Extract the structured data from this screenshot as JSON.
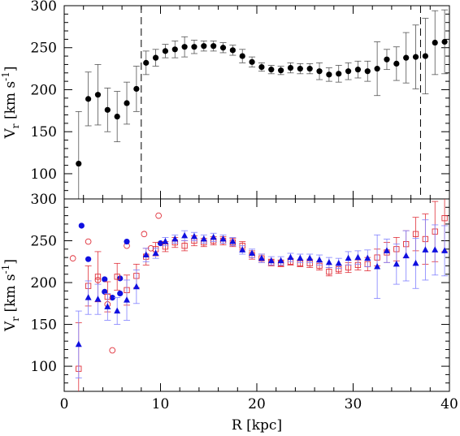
{
  "chart_data": {
    "type": "scatter",
    "xlabel": "R [kpc]",
    "x_ticks": [
      0,
      10,
      20,
      30,
      40
    ],
    "xlim": [
      0,
      40
    ],
    "panels": [
      {
        "ylabel": "V",
        "ylabel_sub": "r",
        "ylabel_units": "[km s",
        "ylabel_exp": "-1",
        "ylabel_close": "]",
        "ylim": [
          70,
          300
        ],
        "y_ticks": [
          100,
          150,
          200,
          250,
          300
        ],
        "vlines": [
          8.0,
          37.0
        ],
        "series": [
          {
            "marker": "filled-circle",
            "color": "#000000",
            "errcolor": "#555555",
            "points": [
              {
                "x": 1.5,
                "y": 112,
                "err": 62
              },
              {
                "x": 2.5,
                "y": 189,
                "err": 32
              },
              {
                "x": 3.5,
                "y": 194,
                "err": 36
              },
              {
                "x": 4.5,
                "y": 176,
                "err": 26
              },
              {
                "x": 5.5,
                "y": 168,
                "err": 30
              },
              {
                "x": 6.5,
                "y": 184,
                "err": 25
              },
              {
                "x": 7.5,
                "y": 201,
                "err": 27
              },
              {
                "x": 8.5,
                "y": 232,
                "err": 14
              },
              {
                "x": 9.5,
                "y": 238,
                "err": 10
              },
              {
                "x": 10.5,
                "y": 246,
                "err": 8
              },
              {
                "x": 11.5,
                "y": 248,
                "err": 10
              },
              {
                "x": 12.5,
                "y": 251,
                "err": 12
              },
              {
                "x": 13.5,
                "y": 251,
                "err": 8
              },
              {
                "x": 14.5,
                "y": 252,
                "err": 6
              },
              {
                "x": 15.5,
                "y": 252,
                "err": 6
              },
              {
                "x": 16.5,
                "y": 250,
                "err": 6
              },
              {
                "x": 17.5,
                "y": 247,
                "err": 6
              },
              {
                "x": 18.5,
                "y": 240,
                "err": 8
              },
              {
                "x": 19.5,
                "y": 233,
                "err": 6
              },
              {
                "x": 20.5,
                "y": 227,
                "err": 5
              },
              {
                "x": 21.5,
                "y": 224,
                "err": 5
              },
              {
                "x": 22.5,
                "y": 223,
                "err": 5
              },
              {
                "x": 23.5,
                "y": 226,
                "err": 6
              },
              {
                "x": 24.5,
                "y": 225,
                "err": 6
              },
              {
                "x": 25.5,
                "y": 225,
                "err": 6
              },
              {
                "x": 26.5,
                "y": 222,
                "err": 10
              },
              {
                "x": 27.5,
                "y": 218,
                "err": 8
              },
              {
                "x": 28.5,
                "y": 219,
                "err": 10
              },
              {
                "x": 29.5,
                "y": 222,
                "err": 10
              },
              {
                "x": 30.5,
                "y": 224,
                "err": 10
              },
              {
                "x": 31.5,
                "y": 222,
                "err": 12
              },
              {
                "x": 32.5,
                "y": 225,
                "err": 32
              },
              {
                "x": 33.5,
                "y": 236,
                "err": 12
              },
              {
                "x": 34.5,
                "y": 231,
                "err": 20
              },
              {
                "x": 35.5,
                "y": 238,
                "err": 30
              },
              {
                "x": 36.5,
                "y": 239,
                "err": 38
              },
              {
                "x": 37.5,
                "y": 240,
                "err": 45
              },
              {
                "x": 38.5,
                "y": 256,
                "err": 38
              },
              {
                "x": 39.5,
                "y": 257,
                "err": 38
              }
            ]
          }
        ]
      },
      {
        "ylabel": "V",
        "ylabel_sub": "r",
        "ylabel_units": "[km s",
        "ylabel_exp": "-1",
        "ylabel_close": "]",
        "ylim": [
          70,
          300
        ],
        "y_ticks": [
          100,
          150,
          200,
          250,
          300
        ],
        "vlines": [],
        "series": [
          {
            "marker": "open-circle",
            "color": "#e0303a",
            "errcolor": "#e0303a",
            "points": [
              {
                "x": 0.9,
                "y": 229
              },
              {
                "x": 2.5,
                "y": 249
              },
              {
                "x": 3.5,
                "y": 203
              },
              {
                "x": 4.5,
                "y": 174
              },
              {
                "x": 5.0,
                "y": 119
              },
              {
                "x": 6.5,
                "y": 244
              },
              {
                "x": 8.3,
                "y": 258
              },
              {
                "x": 9.0,
                "y": 241
              },
              {
                "x": 9.8,
                "y": 280
              }
            ]
          },
          {
            "marker": "filled-circle",
            "color": "#1010e0",
            "errcolor": "#1010e0",
            "points": [
              {
                "x": 1.8,
                "y": 268
              },
              {
                "x": 2.5,
                "y": 228
              },
              {
                "x": 4.2,
                "y": 204
              },
              {
                "x": 4.2,
                "y": 189
              },
              {
                "x": 5.0,
                "y": 182
              },
              {
                "x": 5.8,
                "y": 205
              },
              {
                "x": 5.8,
                "y": 187
              },
              {
                "x": 6.5,
                "y": 249
              },
              {
                "x": 10.0,
                "y": 247
              }
            ]
          },
          {
            "marker": "open-square",
            "color": "#e0303a",
            "errcolor": "#e0303a",
            "points": [
              {
                "x": 1.5,
                "y": 97,
                "err": 55
              },
              {
                "x": 2.5,
                "y": 196,
                "err": 24
              },
              {
                "x": 3.5,
                "y": 207,
                "err": 30
              },
              {
                "x": 4.5,
                "y": 183,
                "err": 18
              },
              {
                "x": 5.5,
                "y": 207,
                "err": 16
              },
              {
                "x": 6.5,
                "y": 191,
                "err": 18
              },
              {
                "x": 7.5,
                "y": 208,
                "err": 14
              },
              {
                "x": 8.5,
                "y": 231,
                "err": 10
              },
              {
                "x": 9.5,
                "y": 240,
                "err": 8
              },
              {
                "x": 10.5,
                "y": 243,
                "err": 6
              },
              {
                "x": 11.5,
                "y": 248,
                "err": 6
              },
              {
                "x": 12.5,
                "y": 244,
                "err": 6
              },
              {
                "x": 13.5,
                "y": 250,
                "err": 6
              },
              {
                "x": 14.5,
                "y": 248,
                "err": 5
              },
              {
                "x": 15.5,
                "y": 250,
                "err": 5
              },
              {
                "x": 16.5,
                "y": 250,
                "err": 5
              },
              {
                "x": 17.5,
                "y": 248,
                "err": 5
              },
              {
                "x": 18.5,
                "y": 244,
                "err": 5
              },
              {
                "x": 19.5,
                "y": 233,
                "err": 5
              },
              {
                "x": 20.5,
                "y": 229,
                "err": 5
              },
              {
                "x": 21.5,
                "y": 224,
                "err": 4
              },
              {
                "x": 22.5,
                "y": 223,
                "err": 4
              },
              {
                "x": 23.5,
                "y": 225,
                "err": 4
              },
              {
                "x": 24.5,
                "y": 223,
                "err": 4
              },
              {
                "x": 25.5,
                "y": 223,
                "err": 5
              },
              {
                "x": 26.5,
                "y": 220,
                "err": 5
              },
              {
                "x": 27.5,
                "y": 213,
                "err": 5
              },
              {
                "x": 28.5,
                "y": 216,
                "err": 5
              },
              {
                "x": 29.5,
                "y": 218,
                "err": 6
              },
              {
                "x": 30.5,
                "y": 221,
                "err": 6
              },
              {
                "x": 31.5,
                "y": 222,
                "err": 8
              },
              {
                "x": 32.5,
                "y": 230,
                "err": 10
              },
              {
                "x": 33.5,
                "y": 236,
                "err": 12
              },
              {
                "x": 34.5,
                "y": 240,
                "err": 14
              },
              {
                "x": 35.5,
                "y": 246,
                "err": 16
              },
              {
                "x": 36.5,
                "y": 258,
                "err": 20
              },
              {
                "x": 37.5,
                "y": 252,
                "err": 30
              },
              {
                "x": 38.5,
                "y": 261,
                "err": 36
              },
              {
                "x": 39.5,
                "y": 277,
                "err": 40
              }
            ]
          },
          {
            "marker": "filled-triangle",
            "color": "#1010e0",
            "errcolor": "#8080ff",
            "points": [
              {
                "x": 1.5,
                "y": 126,
                "err": 40
              },
              {
                "x": 2.5,
                "y": 182,
                "err": 20
              },
              {
                "x": 3.5,
                "y": 180,
                "err": 18
              },
              {
                "x": 4.5,
                "y": 171,
                "err": 16
              },
              {
                "x": 5.5,
                "y": 166,
                "err": 16
              },
              {
                "x": 6.5,
                "y": 179,
                "err": 24
              },
              {
                "x": 7.5,
                "y": 195,
                "err": 20
              },
              {
                "x": 8.5,
                "y": 233,
                "err": 8
              },
              {
                "x": 9.5,
                "y": 235,
                "err": 6
              },
              {
                "x": 10.5,
                "y": 249,
                "err": 5
              },
              {
                "x": 11.5,
                "y": 252,
                "err": 5
              },
              {
                "x": 12.5,
                "y": 256,
                "err": 6
              },
              {
                "x": 13.5,
                "y": 255,
                "err": 5
              },
              {
                "x": 14.5,
                "y": 252,
                "err": 5
              },
              {
                "x": 15.5,
                "y": 254,
                "err": 5
              },
              {
                "x": 16.5,
                "y": 252,
                "err": 5
              },
              {
                "x": 17.5,
                "y": 249,
                "err": 5
              },
              {
                "x": 18.5,
                "y": 239,
                "err": 5
              },
              {
                "x": 19.5,
                "y": 235,
                "err": 5
              },
              {
                "x": 20.5,
                "y": 229,
                "err": 5
              },
              {
                "x": 21.5,
                "y": 226,
                "err": 5
              },
              {
                "x": 22.5,
                "y": 226,
                "err": 5
              },
              {
                "x": 23.5,
                "y": 230,
                "err": 5
              },
              {
                "x": 24.5,
                "y": 229,
                "err": 5
              },
              {
                "x": 25.5,
                "y": 229,
                "err": 5
              },
              {
                "x": 26.5,
                "y": 227,
                "err": 6
              },
              {
                "x": 27.5,
                "y": 224,
                "err": 6
              },
              {
                "x": 28.5,
                "y": 223,
                "err": 6
              },
              {
                "x": 29.5,
                "y": 229,
                "err": 8
              },
              {
                "x": 30.5,
                "y": 230,
                "err": 8
              },
              {
                "x": 31.5,
                "y": 229,
                "err": 10
              },
              {
                "x": 32.5,
                "y": 219,
                "err": 38
              },
              {
                "x": 33.5,
                "y": 238,
                "err": 14
              },
              {
                "x": 34.5,
                "y": 222,
                "err": 24
              },
              {
                "x": 35.5,
                "y": 232,
                "err": 30
              },
              {
                "x": 36.5,
                "y": 223,
                "err": 30
              },
              {
                "x": 37.5,
                "y": 239,
                "err": 36
              },
              {
                "x": 38.5,
                "y": 239,
                "err": 30
              },
              {
                "x": 39.5,
                "y": 238,
                "err": 30
              }
            ]
          }
        ]
      }
    ]
  }
}
